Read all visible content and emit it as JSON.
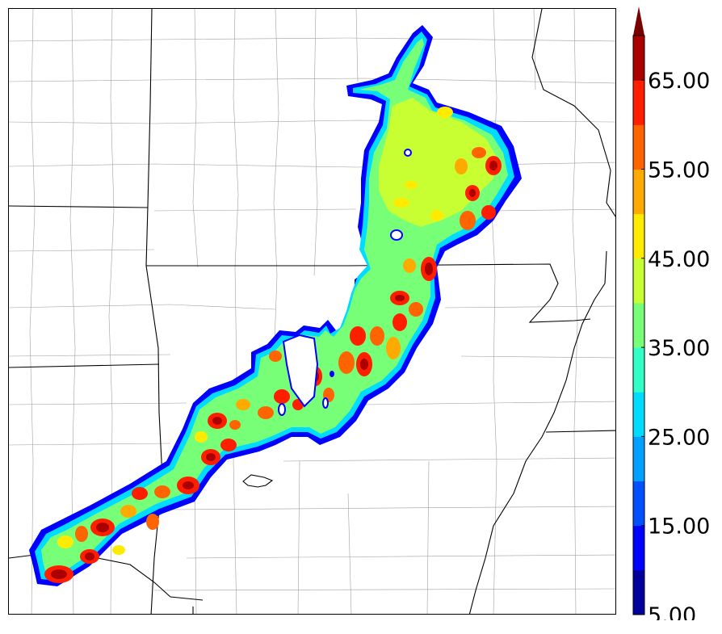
{
  "colorbar": {
    "ticks": [
      "5.00",
      "15.00",
      "25.00",
      "35.00",
      "45.00",
      "55.00",
      "65.00"
    ],
    "colors": [
      "#00009c",
      "#0000ff",
      "#0050ff",
      "#00a0ff",
      "#00dcff",
      "#32ffc8",
      "#78ff78",
      "#c8ff32",
      "#ffeb00",
      "#ffaa00",
      "#ff6400",
      "#ff1e00",
      "#aa0000",
      "#780000"
    ],
    "extend": "max"
  },
  "map": {
    "field_colors": {
      "edge": "#0000ff",
      "low": "#00dcff",
      "mid": "#78ff78",
      "midhigh": "#c8ff32",
      "yellow": "#ffeb00",
      "orange": "#ffaa00",
      "red": "#ff1e00",
      "darkred": "#aa0000"
    },
    "boundary_colors": {
      "state": "#000000",
      "county": "#9a9a9a"
    }
  }
}
